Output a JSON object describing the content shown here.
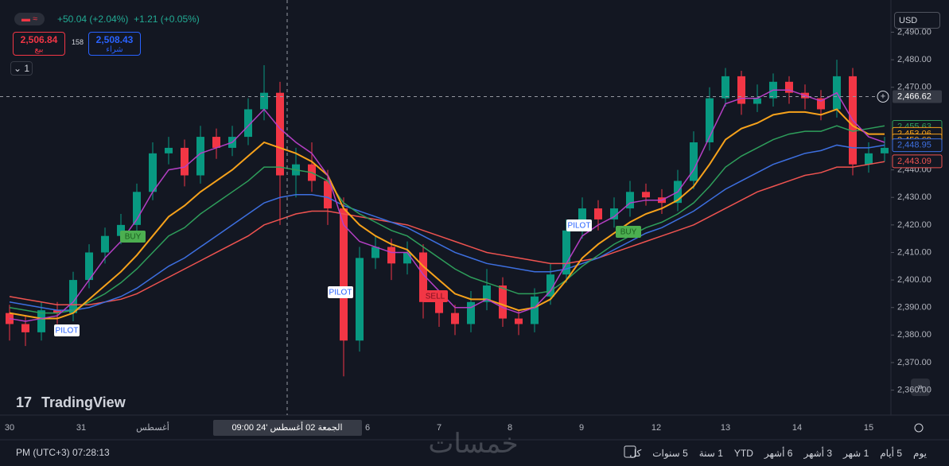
{
  "header": {
    "change_1": "+50.04 (+2.04%)",
    "change_2": "+1.21 (+0.05%)",
    "sell_price": "2,506.84",
    "sell_label": "بيع",
    "spread": "158",
    "buy_price": "2,508.43",
    "buy_label": "شراء",
    "interval": "1",
    "currency": "USD"
  },
  "chart_data": {
    "type": "candlestick",
    "ylim": [
      2351.5,
      2501.7
    ],
    "yticks": [
      {
        "value": 2360,
        "label": "2,360.00"
      },
      {
        "value": 2370,
        "label": "2,370.00"
      },
      {
        "value": 2380,
        "label": "2,380.00"
      },
      {
        "value": 2390,
        "label": "2,390.00"
      },
      {
        "value": 2400,
        "label": "2,400.00"
      },
      {
        "value": 2410,
        "label": "2,410.00"
      },
      {
        "value": 2420,
        "label": "2,420.00"
      },
      {
        "value": 2430,
        "label": "2,430.00"
      },
      {
        "value": 2440,
        "label": "2,440.00"
      },
      {
        "value": 2470,
        "label": "2,470.00"
      },
      {
        "value": 2480,
        "label": "2,480.00"
      },
      {
        "value": 2490,
        "label": "2,490.00"
      }
    ],
    "x_labels": [
      "30",
      "31",
      "أغسطس",
      "6",
      "7",
      "8",
      "9",
      "12",
      "13",
      "14",
      "15"
    ],
    "crosshair_time": "الجمعة 02 أغسطس '24 09:00",
    "crosshair_price": {
      "value": 2466.62,
      "label": "2,466.62"
    },
    "up_color": "#089981",
    "down_color": "#f23645",
    "candles": {
      "open": [
        2388,
        2384,
        2381,
        2389,
        2388,
        2400,
        2410,
        2416,
        2420,
        2432,
        2446,
        2448,
        2438,
        2452,
        2448,
        2452,
        2462,
        2468,
        2438,
        2442,
        2436,
        2426,
        2378,
        2408,
        2412,
        2406,
        2410,
        2392,
        2388,
        2384,
        2392,
        2398,
        2386,
        2384,
        2394,
        2402,
        2418,
        2426,
        2422,
        2426,
        2432,
        2430,
        2428,
        2436,
        2450,
        2466,
        2474,
        2464,
        2466,
        2472,
        2468,
        2466,
        2462,
        2474,
        2442,
        2446
      ],
      "high": [
        2391,
        2387,
        2392,
        2392,
        2403,
        2413,
        2419,
        2424,
        2435,
        2450,
        2452,
        2451,
        2456,
        2455,
        2456,
        2466,
        2478,
        2472,
        2448,
        2450,
        2440,
        2430,
        2412,
        2416,
        2415,
        2414,
        2413,
        2396,
        2391,
        2396,
        2404,
        2401,
        2389,
        2397,
        2406,
        2422,
        2430,
        2429,
        2430,
        2436,
        2435,
        2433,
        2440,
        2454,
        2470,
        2477,
        2476,
        2471,
        2475,
        2474,
        2471,
        2469,
        2480,
        2477,
        2450,
        2452
      ],
      "low": [
        2378,
        2376,
        2378,
        2384,
        2385,
        2397,
        2406,
        2413,
        2417,
        2429,
        2442,
        2434,
        2435,
        2444,
        2445,
        2449,
        2458,
        2420,
        2430,
        2432,
        2420,
        2365,
        2374,
        2404,
        2400,
        2402,
        2386,
        2383,
        2380,
        2381,
        2389,
        2383,
        2380,
        2381,
        2391,
        2399,
        2415,
        2418,
        2419,
        2423,
        2427,
        2424,
        2425,
        2433,
        2447,
        2463,
        2460,
        2461,
        2463,
        2464,
        2462,
        2458,
        2459,
        2438,
        2439,
        2443
      ],
      "close": [
        2384,
        2381,
        2389,
        2388,
        2400,
        2410,
        2416,
        2420,
        2432,
        2446,
        2448,
        2438,
        2452,
        2448,
        2452,
        2462,
        2468,
        2438,
        2442,
        2436,
        2426,
        2378,
        2408,
        2412,
        2406,
        2410,
        2392,
        2388,
        2384,
        2392,
        2398,
        2386,
        2384,
        2394,
        2402,
        2418,
        2426,
        2422,
        2426,
        2432,
        2430,
        2428,
        2436,
        2450,
        2466,
        2474,
        2464,
        2466,
        2472,
        2468,
        2466,
        2462,
        2474,
        2442,
        2446,
        2448
      ]
    },
    "series": [
      {
        "color": "#ef5350",
        "values": [
          2394,
          2393,
          2392,
          2391,
          2391,
          2391,
          2392,
          2393,
          2395,
          2398,
          2401,
          2404,
          2407,
          2410,
          2413,
          2416,
          2420,
          2422,
          2424,
          2425,
          2425,
          2424,
          2423,
          2422,
          2421,
          2420,
          2418,
          2416,
          2414,
          2412,
          2410,
          2409,
          2408,
          2407,
          2406,
          2406,
          2407,
          2408,
          2410,
          2412,
          2414,
          2416,
          2418,
          2420,
          2423,
          2426,
          2429,
          2432,
          2434,
          2436,
          2438,
          2439,
          2441,
          2441,
          2442,
          2443
        ]
      },
      {
        "color": "#3d6fe0",
        "values": [
          2392,
          2391,
          2390,
          2389,
          2389,
          2390,
          2392,
          2394,
          2397,
          2401,
          2405,
          2408,
          2412,
          2416,
          2420,
          2424,
          2428,
          2430,
          2431,
          2431,
          2430,
          2427,
          2425,
          2423,
          2421,
          2419,
          2416,
          2413,
          2410,
          2408,
          2406,
          2405,
          2404,
          2403,
          2403,
          2404,
          2406,
          2408,
          2411,
          2414,
          2417,
          2419,
          2422,
          2425,
          2429,
          2433,
          2436,
          2439,
          2442,
          2444,
          2446,
          2447,
          2449,
          2448,
          2448,
          2449
        ]
      },
      {
        "color": "#2e9e5b",
        "values": [
          2390,
          2389,
          2388,
          2388,
          2389,
          2392,
          2395,
          2399,
          2404,
          2410,
          2416,
          2419,
          2424,
          2428,
          2432,
          2436,
          2441,
          2441,
          2440,
          2439,
          2436,
          2428,
          2424,
          2421,
          2418,
          2416,
          2412,
          2408,
          2404,
          2401,
          2399,
          2397,
          2395,
          2395,
          2396,
          2400,
          2405,
          2409,
          2413,
          2416,
          2419,
          2421,
          2424,
          2428,
          2434,
          2441,
          2445,
          2448,
          2451,
          2453,
          2454,
          2454,
          2456,
          2454,
          2455,
          2456
        ]
      },
      {
        "color": "#f7a21b",
        "values": [
          2388,
          2387,
          2386,
          2386,
          2388,
          2393,
          2398,
          2403,
          2409,
          2416,
          2423,
          2427,
          2432,
          2436,
          2440,
          2445,
          2450,
          2448,
          2446,
          2443,
          2438,
          2426,
          2420,
          2416,
          2413,
          2411,
          2405,
          2400,
          2395,
          2393,
          2393,
          2391,
          2389,
          2390,
          2393,
          2400,
          2408,
          2413,
          2417,
          2421,
          2424,
          2426,
          2429,
          2434,
          2442,
          2451,
          2455,
          2457,
          2460,
          2461,
          2461,
          2460,
          2462,
          2456,
          2453,
          2453
        ]
      },
      {
        "color": "#b43fc4",
        "values": [
          2386,
          2385,
          2386,
          2387,
          2392,
          2400,
          2408,
          2414,
          2422,
          2432,
          2440,
          2441,
          2446,
          2448,
          2450,
          2456,
          2462,
          2455,
          2450,
          2446,
          2438,
          2420,
          2414,
          2412,
          2410,
          2410,
          2402,
          2396,
          2390,
          2390,
          2393,
          2390,
          2388,
          2390,
          2396,
          2406,
          2416,
          2420,
          2423,
          2428,
          2429,
          2429,
          2432,
          2440,
          2452,
          2464,
          2466,
          2466,
          2469,
          2469,
          2467,
          2465,
          2468,
          2458,
          2452,
          2450
        ]
      }
    ],
    "price_labels": [
      {
        "value": 2455.63,
        "label": "2,455.63",
        "color": "#2e9e5b"
      },
      {
        "value": 2453.06,
        "label": "2,453.06",
        "color": "#f7a21b"
      },
      {
        "value": 2450.69,
        "label": "2,450.69",
        "color": "#f7a21b"
      },
      {
        "value": 2448.95,
        "label": "2,448.95",
        "color": "#3d6fe0"
      },
      {
        "value": 2443.09,
        "label": "2,443.09",
        "color": "#ef5350"
      }
    ],
    "signals": [
      "PILOT",
      "BUY",
      "PILOT",
      "SELL",
      "PILOT",
      "BUY"
    ]
  },
  "watermark": "TradingView",
  "site_mark": "خمسات",
  "footer": {
    "time": "PM (UTC+3) 07:28:13",
    "ranges": [
      "كل",
      "5 سنوات",
      "1 سنة",
      "YTD",
      "6 أشهر",
      "3 أشهر",
      "1 شهر",
      "5 أيام",
      "يوم"
    ]
  }
}
